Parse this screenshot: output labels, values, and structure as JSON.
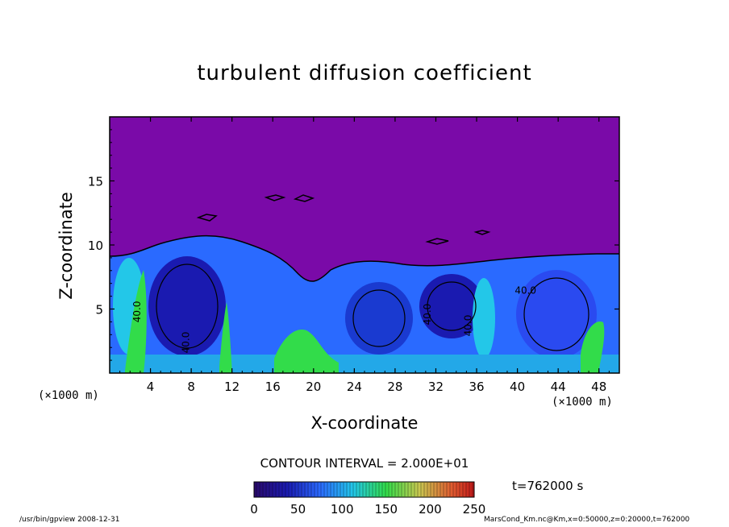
{
  "chart_data": {
    "type": "heatmap",
    "title": "turbulent diffusion coefficient",
    "xlabel": "X-coordinate",
    "ylabel": "Z-coordinate",
    "x_unit": "(×1000 m)",
    "xlim": [
      0,
      50
    ],
    "ylim": [
      0,
      20
    ],
    "x_ticks": [
      "4",
      "8",
      "12",
      "16",
      "20",
      "24",
      "28",
      "32",
      "36",
      "40",
      "44",
      "48"
    ],
    "y_ticks": [
      "5",
      "10",
      "15"
    ],
    "contour_labels": [
      "40.0",
      "40.0",
      "40.0",
      "40.0",
      "40.0"
    ],
    "contour_interval_text": "CONTOUR INTERVAL = 2.000E+01",
    "colorbar": {
      "ticks": [
        "0",
        "50",
        "100",
        "150",
        "200",
        "250"
      ],
      "range": [
        0,
        250
      ]
    },
    "time_text": "t=762000 s",
    "colors": {
      "background_field": "#7a0aa8",
      "low": "#1a1aa0",
      "mid": "#2a6aff",
      "high_cyan": "#23c7e8",
      "high_green": "#32dc4a"
    }
  },
  "footer": {
    "left": "/usr/bin/gpview   2008-12-31",
    "right": "MarsCond_Km.nc@Km,x=0:50000,z=0:20000,t=762000"
  }
}
